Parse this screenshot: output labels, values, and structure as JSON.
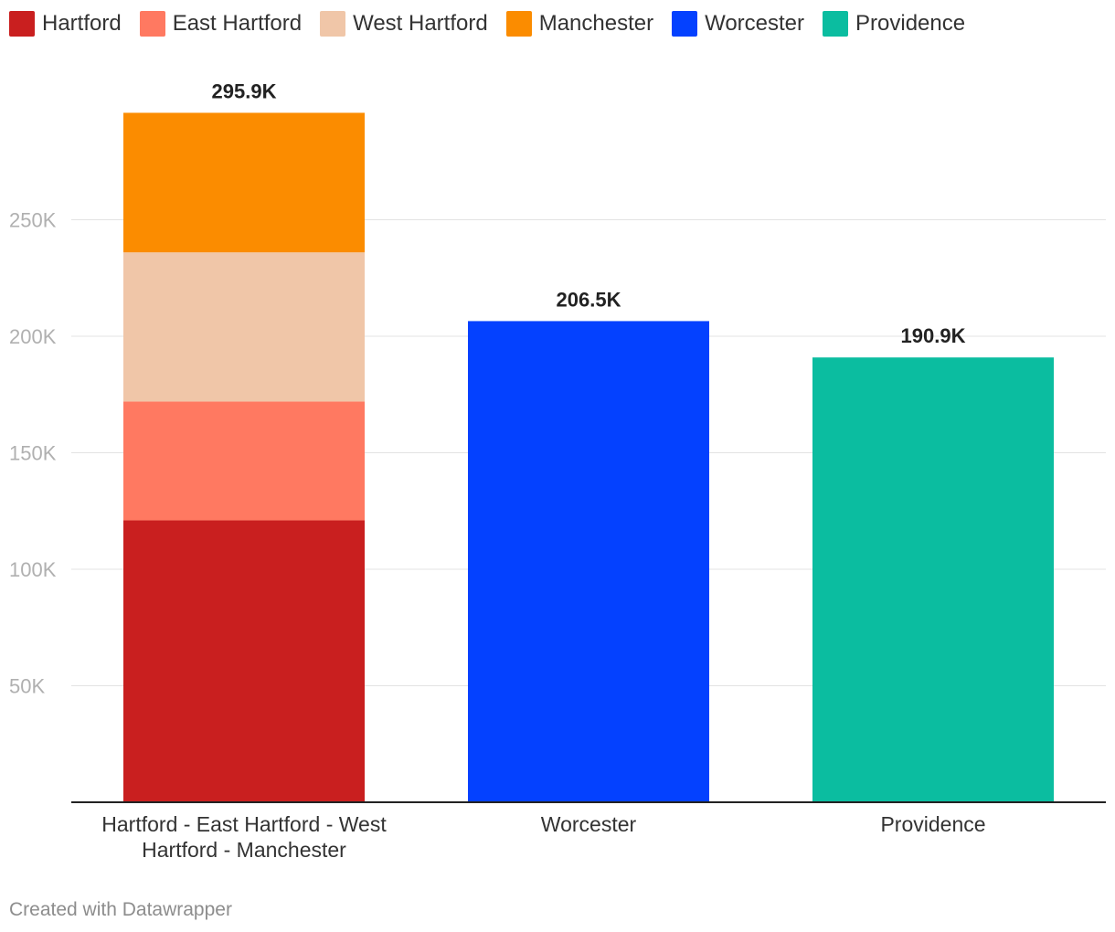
{
  "legend": [
    {
      "label": "Hartford",
      "color": "#c91f1f"
    },
    {
      "label": "East Hartford",
      "color": "#ff7961"
    },
    {
      "label": "West Hartford",
      "color": "#f0c6a8"
    },
    {
      "label": "Manchester",
      "color": "#fb8c00"
    },
    {
      "label": "Worcester",
      "color": "#0441ff"
    },
    {
      "label": "Providence",
      "color": "#0bbda0"
    }
  ],
  "chart_data": {
    "type": "bar",
    "stacked": true,
    "categories": [
      "Hartford - East Hartford - West Hartford - Manchester",
      "Worcester",
      "Providence"
    ],
    "category_label_lines": [
      [
        "Hartford - East Hartford - West",
        "Hartford - Manchester"
      ],
      [
        "Worcester"
      ],
      [
        "Providence"
      ]
    ],
    "series": [
      {
        "name": "Hartford",
        "values": [
          121000,
          0,
          0
        ]
      },
      {
        "name": "East Hartford",
        "values": [
          51000,
          0,
          0
        ]
      },
      {
        "name": "West Hartford",
        "values": [
          64000,
          0,
          0
        ]
      },
      {
        "name": "Manchester",
        "values": [
          59900,
          0,
          0
        ]
      },
      {
        "name": "Worcester",
        "values": [
          0,
          206500,
          0
        ]
      },
      {
        "name": "Providence",
        "values": [
          0,
          0,
          190900
        ]
      }
    ],
    "totals": [
      295900,
      206500,
      190900
    ],
    "total_labels": [
      "295.9K",
      "206.5K",
      "190.9K"
    ],
    "yticks": [
      {
        "value": 50000,
        "label": "50K"
      },
      {
        "value": 100000,
        "label": "100K"
      },
      {
        "value": 150000,
        "label": "150K"
      },
      {
        "value": 200000,
        "label": "200K"
      },
      {
        "value": 250000,
        "label": "250K"
      }
    ],
    "ylim": [
      0,
      300000
    ],
    "grid": true,
    "legend_position": "top-left"
  },
  "footer": {
    "credit": "Created with Datawrapper"
  }
}
